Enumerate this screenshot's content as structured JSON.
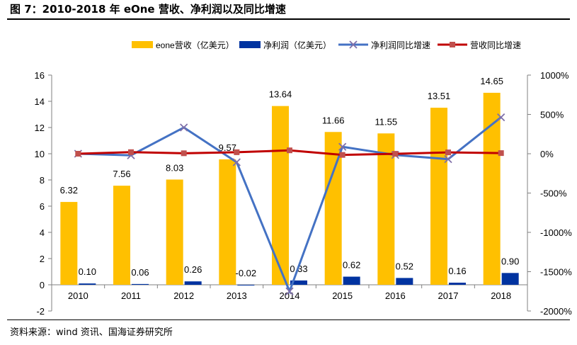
{
  "header": {
    "title": "图 7：2010-2018 年 eOne 营收、净利润以及同比增速"
  },
  "footer": {
    "source": "资料来源：wind 资讯、国海证券研究所"
  },
  "colors": {
    "revenue": "#FFC000",
    "profit": "#0033A0",
    "profit_growth": "#4472C4",
    "revenue_growth": "#C00000",
    "axis": "#808080"
  },
  "chart_data": {
    "type": "bar",
    "categories": [
      "2010",
      "2011",
      "2012",
      "2013",
      "2014",
      "2015",
      "2016",
      "2017",
      "2018"
    ],
    "y_left": {
      "min": -2,
      "max": 16,
      "ticks": [
        -2,
        0,
        2,
        4,
        6,
        8,
        10,
        12,
        14,
        16
      ]
    },
    "y_right": {
      "min": -2000,
      "max": 1000,
      "ticks": [
        -2000,
        -1500,
        -1000,
        -500,
        0,
        500,
        1000
      ],
      "tick_labels": [
        "-2000%",
        "-1500%",
        "-1000%",
        "-500%",
        "0%",
        "500%",
        "1000%"
      ]
    },
    "series": [
      {
        "name": "eone营收（亿美元）",
        "type": "bar",
        "axis": "left",
        "values": [
          6.32,
          7.56,
          8.03,
          9.57,
          13.64,
          11.66,
          11.55,
          13.51,
          14.65
        ],
        "labels": [
          "6.32",
          "7.56",
          "8.03",
          "9.57",
          "13.64",
          "11.66",
          "11.55",
          "13.51",
          "14.65"
        ]
      },
      {
        "name": "净利润（亿美元）",
        "type": "bar",
        "axis": "left",
        "values": [
          0.1,
          0.06,
          0.26,
          -0.02,
          0.33,
          0.62,
          0.52,
          0.16,
          0.9
        ],
        "labels": [
          "0.10",
          "0.06",
          "0.26",
          "-0.02",
          "0.33",
          "0.62",
          "0.52",
          "0.16",
          "0.90"
        ]
      },
      {
        "name": "净利润同比增速",
        "type": "line",
        "axis": "right",
        "marker": "x",
        "values": [
          0,
          -20,
          333,
          -108,
          -1750,
          88,
          -16,
          -69,
          463
        ]
      },
      {
        "name": "营收同比增速",
        "type": "line",
        "axis": "right",
        "marker": "square",
        "values": [
          0,
          20,
          6,
          19,
          43,
          -15,
          -1,
          17,
          8
        ]
      }
    ],
    "legend_position": "top"
  }
}
